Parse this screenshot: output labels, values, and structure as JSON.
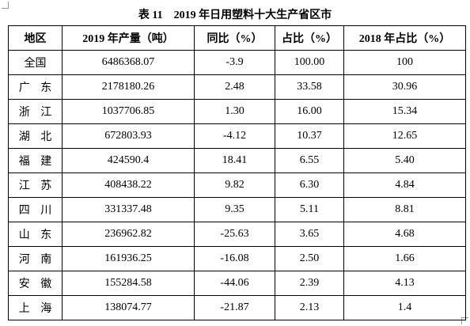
{
  "title": "表 11　2019 年日用塑料十大生产省区市",
  "table": {
    "header": [
      "地区",
      "2019 年产量（吨）",
      "同比（%）",
      "占比（%）",
      "2018 年占比（%）"
    ],
    "rows": [
      [
        "全国",
        "6486368.07",
        "-3.9",
        "100.00",
        "100"
      ],
      [
        "广 东",
        "2178180.26",
        "2.48",
        "33.58",
        "30.96"
      ],
      [
        "浙 江",
        "1037706.85",
        "1.30",
        "16.00",
        "15.34"
      ],
      [
        "湖 北",
        "672803.93",
        "-4.12",
        "10.37",
        "12.65"
      ],
      [
        "福 建",
        "424590.4",
        "18.41",
        "6.55",
        "5.40"
      ],
      [
        "江 苏",
        "408438.22",
        "9.82",
        "6.30",
        "4.84"
      ],
      [
        "四 川",
        "331337.48",
        "9.35",
        "5.11",
        "8.81"
      ],
      [
        "山 东",
        "236962.82",
        "-25.63",
        "3.65",
        "4.68"
      ],
      [
        "河 南",
        "161936.25",
        "-16.08",
        "2.50",
        "1.66"
      ],
      [
        "安 徽",
        "155284.58",
        "-44.06",
        "2.39",
        "4.13"
      ],
      [
        "上 海",
        "138074.77",
        "-21.87",
        "2.13",
        "1.4"
      ]
    ]
  }
}
